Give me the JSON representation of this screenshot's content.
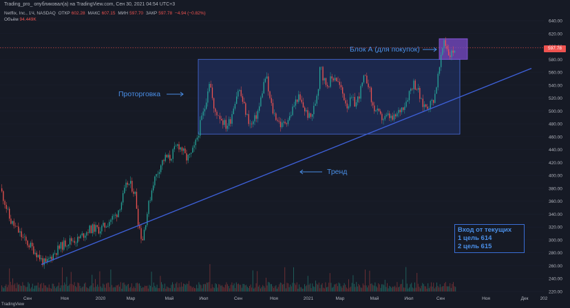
{
  "header": {
    "title": "Trading_pro_ опубликовал(а) на TradingView.com, Сен 30, 2021 04:54 UTC+3"
  },
  "legend": {
    "symbol": "Netflix, Inc., 1Ч, NASDAQ",
    "open_label": "ОТКР",
    "open": "602.28",
    "high_label": "МАКС",
    "high": "607.15",
    "low_label": "МИН",
    "low": "597.70",
    "close_label": "ЗАКР",
    "close": "597.78",
    "change": "−4.94 (−0.82%)",
    "volume_label": "Объём",
    "volume": "94.449K"
  },
  "annotations": {
    "block_a": "Блок А (для покупок)",
    "consolidation": "Проторговка",
    "trend": "Тренд"
  },
  "info_box": {
    "line1": "Вход от текущих",
    "line2": "1 цель 614",
    "line3": "2 цель 615"
  },
  "price_tag": "597.78",
  "footer_logo": "TradingView",
  "colors": {
    "background": "#161a25",
    "up": "#26a69a",
    "down": "#ef5350",
    "annotation": "#4a8fe8",
    "zone_fill": "#2f4fb8",
    "block_fill": "#7a4bc8",
    "trendline": "#3d5fd6"
  },
  "chart_data": {
    "type": "candlestick",
    "y_axis": {
      "min": 220,
      "max": 640,
      "ticks": [
        640,
        620,
        600,
        580,
        560,
        540,
        520,
        500,
        480,
        460,
        440,
        420,
        400,
        380,
        360,
        340,
        320,
        300,
        280,
        260,
        240,
        220
      ]
    },
    "x_axis": {
      "labels": [
        "Сен",
        "Ноя",
        "2020",
        "Мар",
        "Май",
        "Июл",
        "Сен",
        "Ноя",
        "2021",
        "Мар",
        "Май",
        "Июл",
        "Сен",
        "Ноя",
        "Дек",
        "202"
      ]
    },
    "close_path": [
      [
        0,
        380
      ],
      [
        6,
        360
      ],
      [
        14,
        330
      ],
      [
        20,
        322
      ],
      [
        28,
        310
      ],
      [
        36,
        298
      ],
      [
        44,
        290
      ],
      [
        52,
        280
      ],
      [
        60,
        268
      ],
      [
        66,
        262
      ],
      [
        72,
        272
      ],
      [
        80,
        282
      ],
      [
        88,
        290
      ],
      [
        96,
        296
      ],
      [
        104,
        300
      ],
      [
        112,
        300
      ],
      [
        120,
        308
      ],
      [
        128,
        316
      ],
      [
        136,
        318
      ],
      [
        144,
        316
      ],
      [
        152,
        322
      ],
      [
        160,
        332
      ],
      [
        168,
        338
      ],
      [
        176,
        360
      ],
      [
        184,
        388
      ],
      [
        190,
        384
      ],
      [
        196,
        370
      ],
      [
        200,
        330
      ],
      [
        206,
        298
      ],
      [
        210,
        324
      ],
      [
        216,
        358
      ],
      [
        222,
        390
      ],
      [
        228,
        404
      ],
      [
        234,
        420
      ],
      [
        240,
        428
      ],
      [
        246,
        426
      ],
      [
        252,
        438
      ],
      [
        258,
        448
      ],
      [
        264,
        440
      ],
      [
        270,
        426
      ],
      [
        276,
        430
      ],
      [
        282,
        444
      ],
      [
        288,
        468
      ],
      [
        292,
        488
      ],
      [
        296,
        500
      ],
      [
        300,
        526
      ],
      [
        303,
        548
      ],
      [
        306,
        534
      ],
      [
        310,
        500
      ],
      [
        316,
        496
      ],
      [
        322,
        486
      ],
      [
        328,
        476
      ],
      [
        334,
        486
      ],
      [
        340,
        514
      ],
      [
        346,
        536
      ],
      [
        352,
        514
      ],
      [
        358,
        492
      ],
      [
        364,
        476
      ],
      [
        370,
        488
      ],
      [
        376,
        506
      ],
      [
        382,
        540
      ],
      [
        386,
        556
      ],
      [
        390,
        524
      ],
      [
        396,
        498
      ],
      [
        402,
        488
      ],
      [
        408,
        476
      ],
      [
        414,
        484
      ],
      [
        420,
        490
      ],
      [
        426,
        508
      ],
      [
        432,
        522
      ],
      [
        438,
        510
      ],
      [
        444,
        498
      ],
      [
        450,
        488
      ],
      [
        456,
        506
      ],
      [
        462,
        540
      ],
      [
        465,
        586
      ],
      [
        468,
        552
      ],
      [
        474,
        540
      ],
      [
        480,
        548
      ],
      [
        486,
        554
      ],
      [
        492,
        540
      ],
      [
        498,
        524
      ],
      [
        504,
        508
      ],
      [
        510,
        518
      ],
      [
        516,
        510
      ],
      [
        522,
        528
      ],
      [
        528,
        550
      ],
      [
        534,
        546
      ],
      [
        540,
        508
      ],
      [
        546,
        500
      ],
      [
        552,
        490
      ],
      [
        558,
        488
      ],
      [
        564,
        492
      ],
      [
        570,
        486
      ],
      [
        576,
        494
      ],
      [
        582,
        504
      ],
      [
        588,
        512
      ],
      [
        594,
        530
      ],
      [
        600,
        544
      ],
      [
        606,
        534
      ],
      [
        612,
        510
      ],
      [
        618,
        508
      ],
      [
        624,
        510
      ],
      [
        630,
        520
      ],
      [
        636,
        556
      ],
      [
        640,
        580
      ],
      [
        644,
        612
      ],
      [
        648,
        600
      ],
      [
        652,
        586
      ],
      [
        656,
        590
      ],
      [
        660,
        597.78
      ]
    ],
    "zones": [
      {
        "name": "Проторговка",
        "x_from": 288,
        "x_to": 668,
        "y_from": 464,
        "y_to": 580
      },
      {
        "name": "Блок А (для покупок)",
        "x_from": 638,
        "x_to": 679,
        "y_from": 580,
        "y_to": 612
      }
    ],
    "trendline": {
      "from": [
        60,
        262
      ],
      "to": [
        772,
        566
      ]
    },
    "last_price": 597.78
  }
}
